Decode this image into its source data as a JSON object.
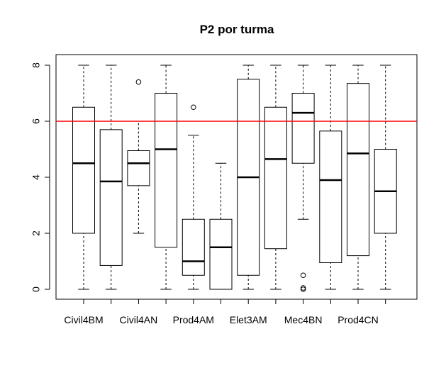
{
  "chart_data": {
    "type": "boxplot",
    "title": "P2 por turma",
    "xlabel": "",
    "ylabel": "",
    "ylim": [
      0,
      8
    ],
    "yticks": [
      0,
      2,
      4,
      6,
      8
    ],
    "x_tick_labels_shown": [
      "Civil4BM",
      "Civil4AN",
      "Prod4AM",
      "Elet3AM",
      "Mec4BN",
      "Prod4CN"
    ],
    "reference_line": {
      "y": 6,
      "color": "#ff0000"
    },
    "boxes": [
      {
        "name": "Civil4BM",
        "min": 0,
        "q1": 2,
        "median": 4.5,
        "q3": 6.5,
        "max": 8,
        "outliers": []
      },
      {
        "name": "",
        "min": 0,
        "q1": 0.85,
        "median": 3.85,
        "q3": 5.7,
        "max": 8,
        "outliers": []
      },
      {
        "name": "Civil4AN",
        "min": 2,
        "q1": 3.7,
        "median": 4.5,
        "q3": 4.95,
        "max": 6,
        "outliers": [
          7.4
        ]
      },
      {
        "name": "",
        "min": 0,
        "q1": 1.5,
        "median": 5,
        "q3": 7,
        "max": 8,
        "outliers": []
      },
      {
        "name": "Prod4AM",
        "min": 0,
        "q1": 0.5,
        "median": 1,
        "q3": 2.5,
        "max": 5.5,
        "outliers": [
          6.5
        ]
      },
      {
        "name": "",
        "min": 0,
        "q1": 0,
        "median": 1.5,
        "q3": 2.5,
        "max": 4.5,
        "outliers": []
      },
      {
        "name": "Elet3AM",
        "min": 0,
        "q1": 0.5,
        "median": 4,
        "q3": 7.5,
        "max": 8,
        "outliers": []
      },
      {
        "name": "",
        "min": 0,
        "q1": 1.45,
        "median": 4.65,
        "q3": 6.5,
        "max": 8,
        "outliers": []
      },
      {
        "name": "Mec4BN",
        "min": 2.5,
        "q1": 4.5,
        "median": 6.3,
        "q3": 7,
        "max": 8,
        "outliers": [
          0.5,
          0.05,
          0
        ]
      },
      {
        "name": "",
        "min": 0,
        "q1": 0.95,
        "median": 3.9,
        "q3": 5.65,
        "max": 8,
        "outliers": []
      },
      {
        "name": "Prod4CN",
        "min": 0,
        "q1": 1.2,
        "median": 4.85,
        "q3": 7.35,
        "max": 8,
        "outliers": []
      },
      {
        "name": "",
        "min": 0,
        "q1": 2,
        "median": 3.5,
        "q3": 5,
        "max": 8,
        "outliers": []
      }
    ],
    "grid": false,
    "legend": "none"
  }
}
